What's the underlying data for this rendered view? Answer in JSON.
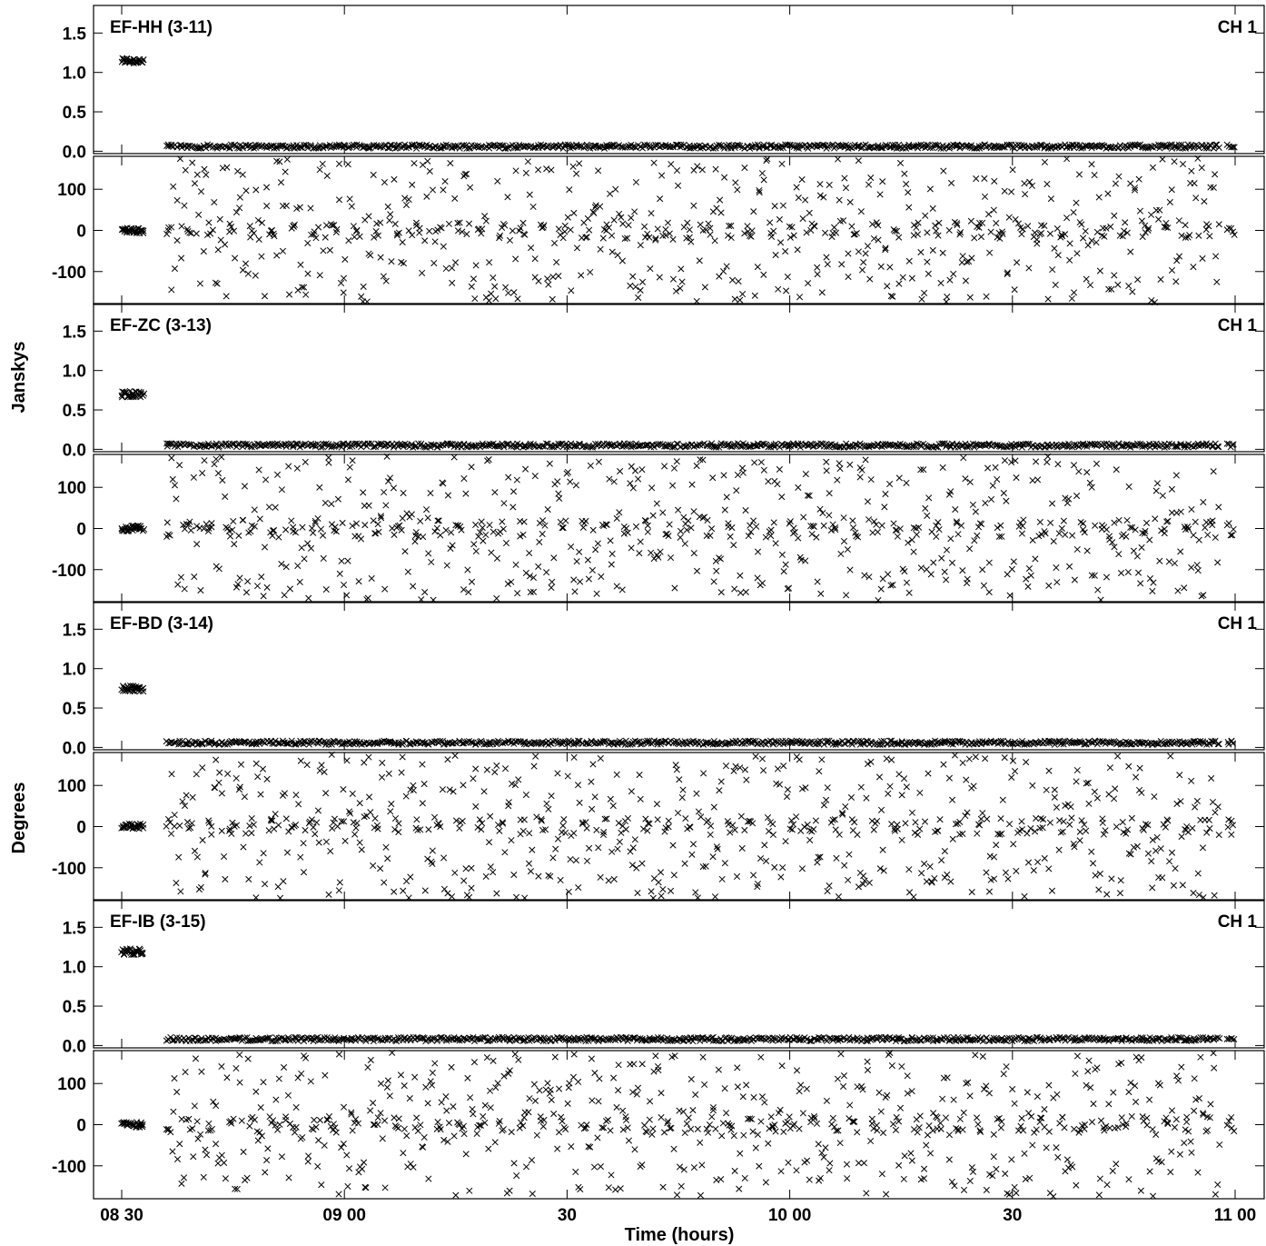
{
  "chart_data": {
    "type": "scatter",
    "marker": "x",
    "color": "#000000",
    "x_unit": "time of day (hh mm)",
    "x_range": [
      "08 30",
      "11 00"
    ],
    "x_ticks": [
      {
        "time": "08:30",
        "label": "08 30"
      },
      {
        "time": "09:00",
        "label": "09 00"
      },
      {
        "time": "09:30",
        "label": "30"
      },
      {
        "time": "10:00",
        "label": "10 00"
      },
      {
        "time": "10:30",
        "label": "30"
      },
      {
        "time": "11:00",
        "label": "11 00"
      }
    ],
    "xlabel": "Time (hours)",
    "ylabel_upper": "Janskys",
    "ylabel_lower": "Degrees",
    "amp_ylim": [
      -0.03,
      1.85
    ],
    "amp_ticks": [
      "0.0",
      "0.5",
      "1.0",
      "1.5"
    ],
    "phase_ylim": [
      -180,
      180
    ],
    "phase_ticks": [
      "-100",
      "0",
      "100"
    ],
    "source_segments": [
      {
        "start": "08:30",
        "end": "08:33"
      },
      {
        "start": "08:36",
        "end": "10:58"
      },
      {
        "start": "10:59",
        "end": "11:00"
      }
    ],
    "baselines": [
      {
        "name": "EF-HH (3-11)",
        "channel": "CH 1",
        "calibrator_amp": 1.15,
        "target_amp": 0.06,
        "calibrator_phase": 0
      },
      {
        "name": "EF-ZC (3-13)",
        "channel": "CH 1",
        "calibrator_amp": 0.7,
        "target_amp": 0.05,
        "calibrator_phase": 0
      },
      {
        "name": "EF-BD (3-14)",
        "channel": "CH 1",
        "calibrator_amp": 0.75,
        "target_amp": 0.06,
        "calibrator_phase": 0
      },
      {
        "name": "EF-IB (3-15)",
        "channel": "CH 1",
        "calibrator_amp": 1.19,
        "target_amp": 0.08,
        "calibrator_phase": 0
      }
    ]
  }
}
